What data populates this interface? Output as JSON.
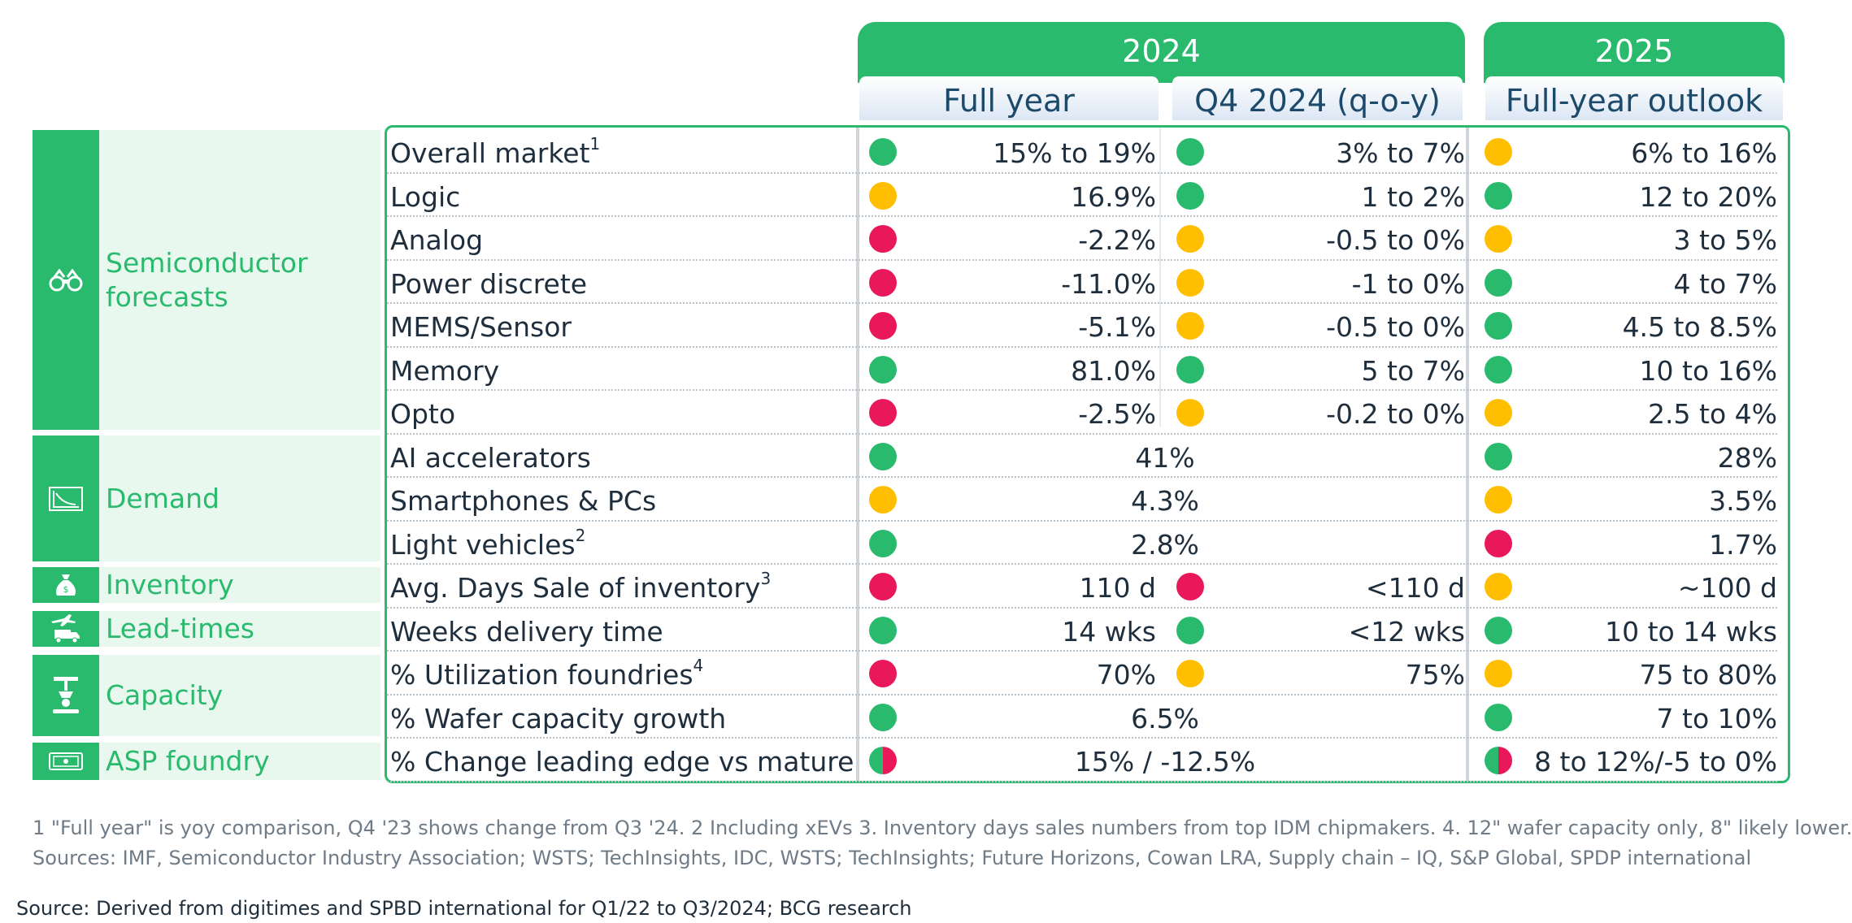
{
  "headers": {
    "year_2024": "2024",
    "year_2025": "2025",
    "full_year": "Full year",
    "q4": "Q4 2024 (q-o-y)",
    "outlook": "Full-year outlook"
  },
  "categories": [
    {
      "label": "Semiconductor forecasts",
      "icon": "binoculars-icon"
    },
    {
      "label": "Demand",
      "icon": "chart-decline-icon"
    },
    {
      "label": "Inventory",
      "icon": "money-bag-icon"
    },
    {
      "label": "Lead-times",
      "icon": "plane-truck-icon"
    },
    {
      "label": "Capacity",
      "icon": "factory-robot-icon"
    },
    {
      "label": "ASP foundry",
      "icon": "banknote-icon"
    }
  ],
  "rows": [
    {
      "label": "Overall market",
      "sup": "1",
      "fy_status": "green",
      "fy": "15% to 19%",
      "q4_status": "green",
      "q4": "3% to 7%",
      "out_status": "yellow",
      "out": "6% to 16%"
    },
    {
      "label": "Logic",
      "sup": "",
      "fy_status": "yellow",
      "fy": "16.9%",
      "q4_status": "green",
      "q4": "1 to 2%",
      "out_status": "green",
      "out": "12 to 20%"
    },
    {
      "label": "Analog",
      "sup": "",
      "fy_status": "red",
      "fy": "-2.2%",
      "q4_status": "yellow",
      "q4": "-0.5 to 0%",
      "out_status": "yellow",
      "out": "3 to 5%"
    },
    {
      "label": "Power discrete",
      "sup": "",
      "fy_status": "red",
      "fy": "-11.0%",
      "q4_status": "yellow",
      "q4": "-1 to 0%",
      "out_status": "green",
      "out": "4 to 7%"
    },
    {
      "label": "MEMS/Sensor",
      "sup": "",
      "fy_status": "red",
      "fy": "-5.1%",
      "q4_status": "yellow",
      "q4": "-0.5 to 0%",
      "out_status": "green",
      "out": "4.5 to 8.5%"
    },
    {
      "label": "Memory",
      "sup": "",
      "fy_status": "green",
      "fy": "81.0%",
      "q4_status": "green",
      "q4": "5 to 7%",
      "out_status": "green",
      "out": "10 to 16%"
    },
    {
      "label": "Opto",
      "sup": "",
      "fy_status": "red",
      "fy": "-2.5%",
      "q4_status": "yellow",
      "q4": "-0.2 to 0%",
      "out_status": "yellow",
      "out": "2.5 to 4%"
    },
    {
      "label": "AI accelerators",
      "sup": "",
      "fy_status": "green",
      "merged": "41%",
      "out_status": "green",
      "out": "28%"
    },
    {
      "label": "Smartphones & PCs",
      "sup": "",
      "fy_status": "yellow",
      "merged": "4.3%",
      "out_status": "yellow",
      "out": "3.5%"
    },
    {
      "label": "Light vehicles",
      "sup": "2",
      "fy_status": "green",
      "merged": "2.8%",
      "out_status": "red",
      "out": "1.7%"
    },
    {
      "label": "Avg. Days Sale of inventory",
      "sup": "3",
      "fy_status": "red",
      "fy": "110 d",
      "q4_status": "red",
      "q4": "<110 d",
      "out_status": "yellow",
      "out": "~100 d"
    },
    {
      "label": "Weeks delivery time",
      "sup": "",
      "fy_status": "green",
      "fy": "14 wks",
      "q4_status": "green",
      "q4": "<12 wks",
      "out_status": "green",
      "out": "10 to 14 wks"
    },
    {
      "label": "% Utilization foundries",
      "sup": "4",
      "fy_status": "red",
      "fy": "70%",
      "q4_status": "yellow",
      "q4": "75%",
      "out_status": "yellow",
      "out": "75 to 80%"
    },
    {
      "label": "% Wafer capacity growth",
      "sup": "",
      "fy_status": "green",
      "merged": "6.5%",
      "out_status": "green",
      "out": "7 to 10%"
    },
    {
      "label": "% Change leading edge vs mature",
      "sup": "",
      "fy_status": "mixed",
      "merged": "15% / -12.5%",
      "out_status": "mixed",
      "out": "8 to 12%/-5 to 0%"
    }
  ],
  "footnotes": {
    "line1": "1 \"Full year\" is yoy comparison, Q4 '23 shows change from Q3 '24. 2 Including xEVs  3. Inventory days sales numbers from top IDM chipmakers. 4. 12\" wafer capacity only, 8\" likely lower.",
    "line2": "Sources: IMF, Semiconductor Industry Association; WSTS; TechInsights, IDC, WSTS; TechInsights; Future Horizons, Cowan LRA, Supply chain – IQ, S&P Global, SPDP international"
  },
  "source": "Source: Derived from digitimes and SPBD international for Q1/22 to Q3/2024; BCG research",
  "colors": {
    "green": "#2aba6e",
    "yellow": "#ffbf00",
    "red": "#e8185a",
    "light_green": "#e8f8ef"
  }
}
